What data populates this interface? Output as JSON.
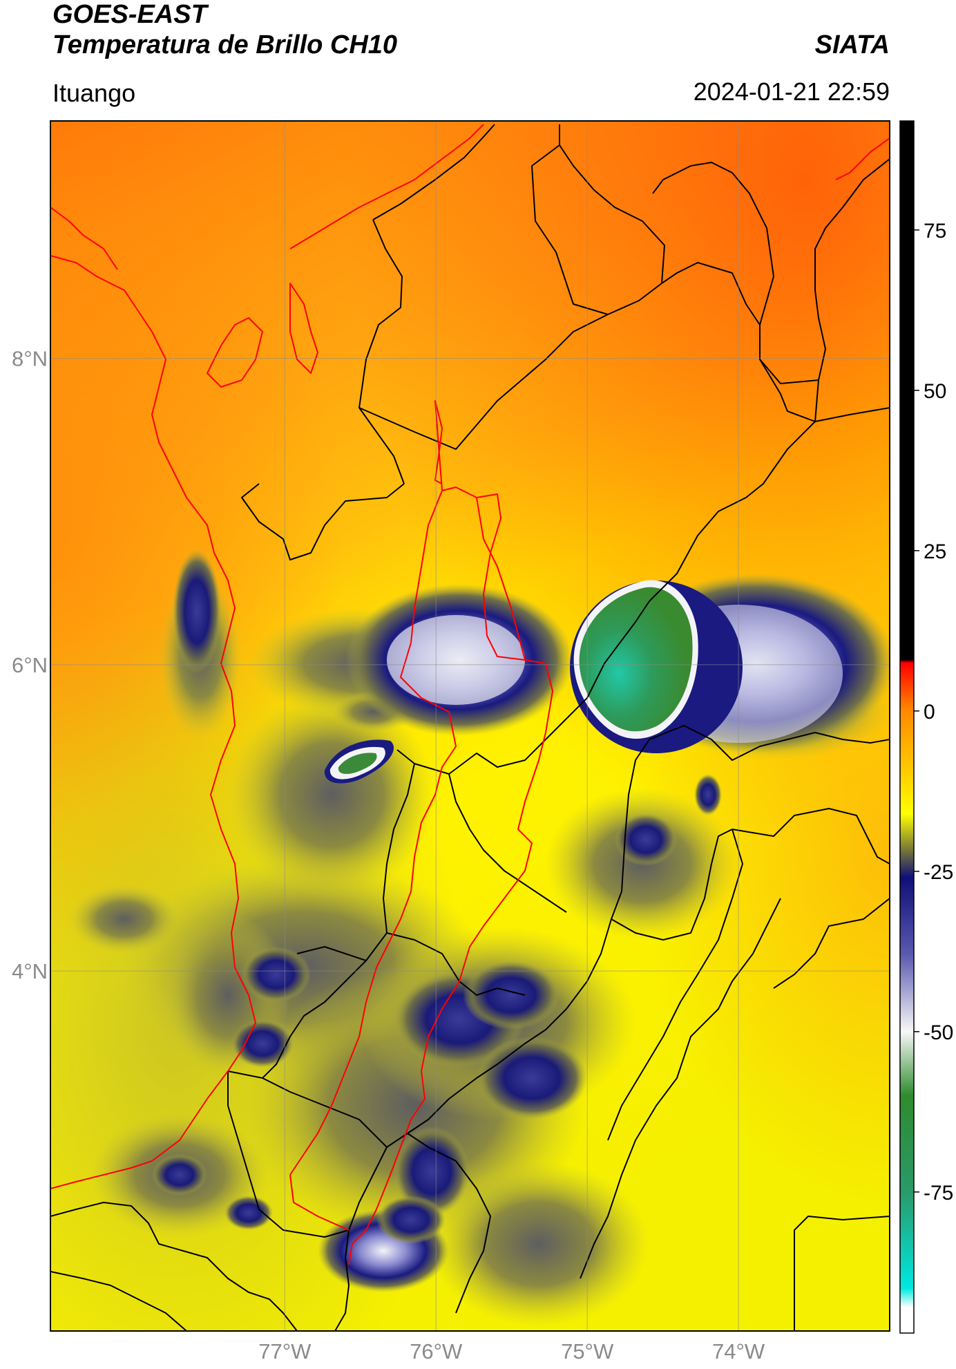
{
  "header": {
    "satellite": "GOES-EAST",
    "product": "Temperatura de Brillo CH10",
    "org": "SIATA",
    "region": "Ituango",
    "datetime": "2024-01-21 22:59"
  },
  "map": {
    "lat_range": [
      1.65,
      9.55
    ],
    "lon_range": [
      -78.55,
      -73.0
    ],
    "lon_ticks": [
      -77,
      -76,
      -75,
      -74
    ],
    "lon_tick_labels": [
      "77°W",
      "76°W",
      "75°W",
      "74°W"
    ],
    "lat_ticks": [
      8,
      6,
      4
    ],
    "lat_tick_labels": [
      "8°N",
      "6°N",
      "4°N"
    ],
    "gridlines": true,
    "colors": {
      "warm_north": "#ff7a0a",
      "orange": "#ffa500",
      "yellow": "#fff000",
      "olive": "#9a9a30",
      "navy": "#1a1a80",
      "white_core": "#f4f4f8",
      "green_core": "#2e8b3a",
      "cyan_core": "#20c8a0",
      "boundary_black": "#000000",
      "boundary_red": "#ff0000"
    }
  },
  "colorbar": {
    "tick_values": [
      75,
      50,
      25,
      0,
      -25,
      -50,
      -75
    ],
    "tick_labels": [
      "75",
      "50",
      "25",
      "0",
      "-25",
      "-50",
      "-75"
    ],
    "range": [
      -97,
      92
    ],
    "stops": [
      {
        "value": 92,
        "color": "#000000"
      },
      {
        "value": 8,
        "color": "#000000"
      },
      {
        "value": 7.5,
        "color": "#ff0000"
      },
      {
        "value": 0,
        "color": "#ff8a00"
      },
      {
        "value": -10,
        "color": "#ffd000"
      },
      {
        "value": -16,
        "color": "#ffff00"
      },
      {
        "value": -22,
        "color": "#6e6e3c"
      },
      {
        "value": -26,
        "color": "#0f0f78"
      },
      {
        "value": -38,
        "color": "#5a5ab0"
      },
      {
        "value": -50,
        "color": "#f8f8f8"
      },
      {
        "value": -60,
        "color": "#2e8b2e"
      },
      {
        "value": -75,
        "color": "#2a9a6a"
      },
      {
        "value": -90,
        "color": "#00e8e0"
      },
      {
        "value": -93,
        "color": "#ffffff"
      },
      {
        "value": -97,
        "color": "#ffffff"
      }
    ]
  }
}
